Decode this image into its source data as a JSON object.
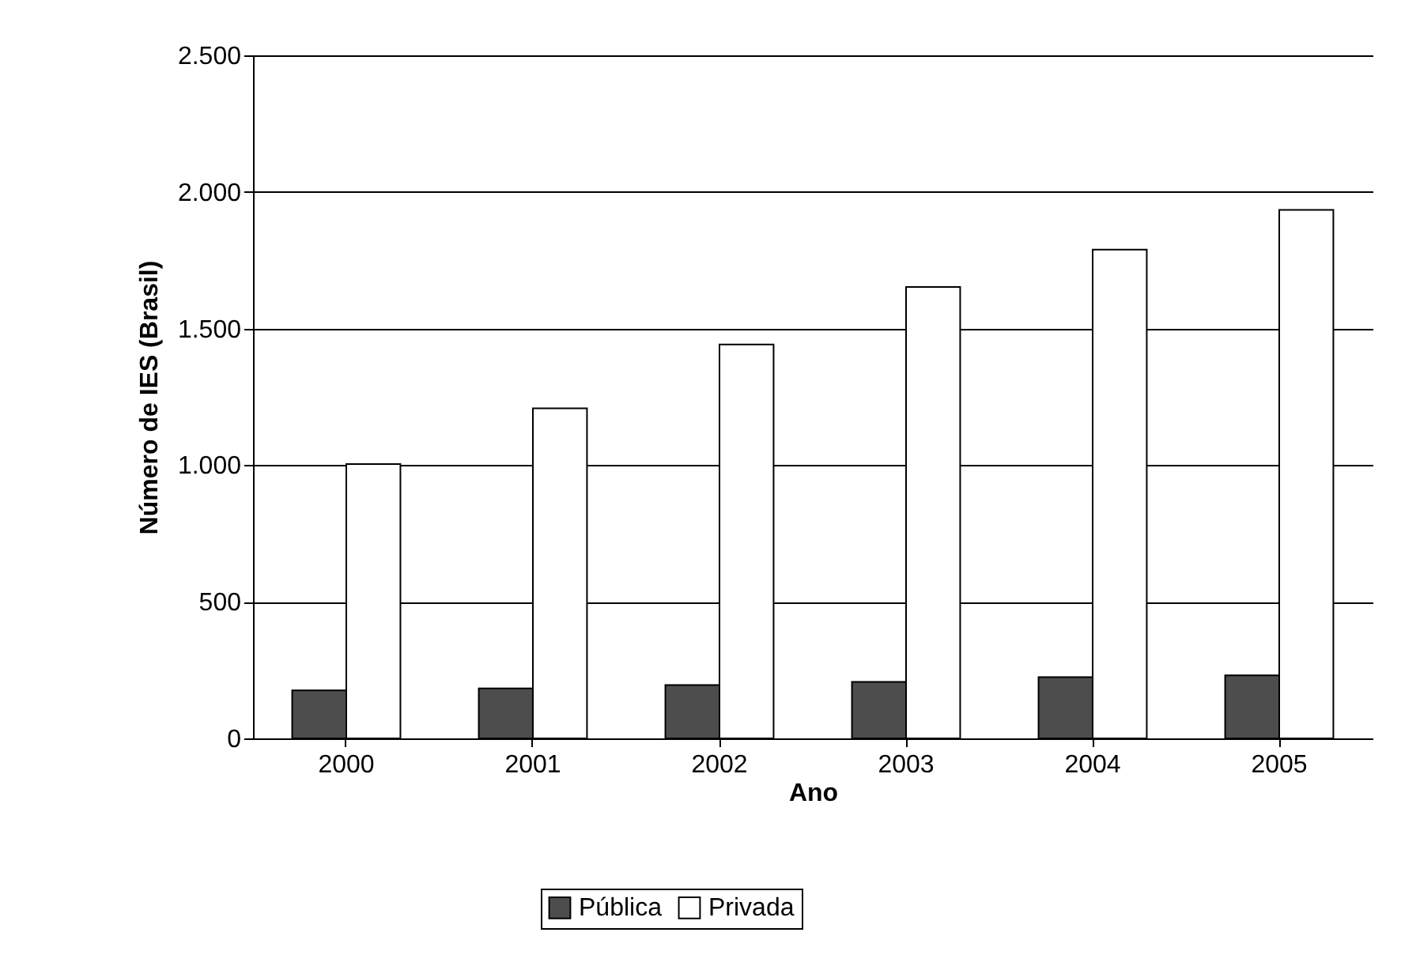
{
  "chart_data": {
    "type": "bar",
    "xlabel": "Ano",
    "ylabel": "Número de IES (Brasil)",
    "categories": [
      "2000",
      "2001",
      "2002",
      "2003",
      "2004",
      "2005"
    ],
    "series": [
      {
        "name": "Pública",
        "color": "#4d4d4d",
        "values": [
          176,
          183,
          195,
          207,
          224,
          231
        ]
      },
      {
        "name": "Privada",
        "color": "#ffffff",
        "values": [
          1004,
          1208,
          1442,
          1652,
          1789,
          1934
        ]
      }
    ],
    "ylim": [
      0,
      2500
    ],
    "yticks": [
      {
        "value": 0,
        "label": "0"
      },
      {
        "value": 500,
        "label": "500"
      },
      {
        "value": 1000,
        "label": "1.000"
      },
      {
        "value": 1500,
        "label": "1.500"
      },
      {
        "value": 2000,
        "label": "2.000"
      },
      {
        "value": 2500,
        "label": "2.500"
      }
    ],
    "grid": "y",
    "legend": "bottom"
  }
}
